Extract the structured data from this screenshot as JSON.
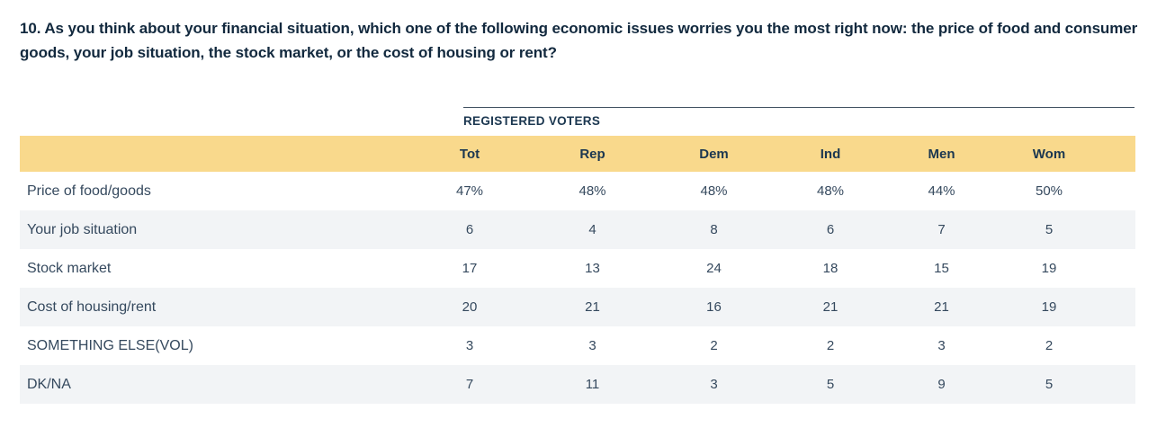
{
  "question": "10. As you think about your financial situation, which one of the following economic issues worries you the most right now: the price of food and consumer goods, your job situation, the stock market, or the cost of housing or rent?",
  "table": {
    "group_header": "REGISTERED VOTERS",
    "columns": [
      "Tot",
      "Rep",
      "Dem",
      "Ind",
      "Men",
      "Wom"
    ],
    "rows": [
      {
        "label": "Price of food/goods",
        "values": [
          "47%",
          "48%",
          "48%",
          "48%",
          "44%",
          "50%"
        ]
      },
      {
        "label": "Your job situation",
        "values": [
          "6",
          "4",
          "8",
          "6",
          "7",
          "5"
        ]
      },
      {
        "label": "Stock market",
        "values": [
          "17",
          "13",
          "24",
          "18",
          "15",
          "19"
        ]
      },
      {
        "label": "Cost of housing/rent",
        "values": [
          "20",
          "21",
          "16",
          "21",
          "21",
          "19"
        ]
      },
      {
        "label": "SOMETHING ELSE(VOL)",
        "values": [
          "3",
          "3",
          "2",
          "2",
          "3",
          "2"
        ]
      },
      {
        "label": "DK/NA",
        "values": [
          "7",
          "11",
          "3",
          "5",
          "9",
          "5"
        ]
      }
    ]
  },
  "chart_data": {
    "type": "table",
    "title": "10. As you think about your financial situation, which one of the following economic issues worries you the most right now: the price of food and consumer goods, your job situation, the stock market, or the cost of housing or rent?",
    "group_header": "REGISTERED VOTERS",
    "columns": [
      "Tot",
      "Rep",
      "Dem",
      "Ind",
      "Men",
      "Wom"
    ],
    "row_labels": [
      "Price of food/goods",
      "Your job situation",
      "Stock market",
      "Cost of housing/rent",
      "SOMETHING ELSE(VOL)",
      "DK/NA"
    ],
    "values": [
      [
        47,
        48,
        48,
        48,
        44,
        50
      ],
      [
        6,
        4,
        8,
        6,
        7,
        5
      ],
      [
        17,
        13,
        24,
        18,
        15,
        19
      ],
      [
        20,
        21,
        16,
        21,
        21,
        19
      ],
      [
        3,
        3,
        2,
        2,
        3,
        2
      ],
      [
        7,
        11,
        3,
        5,
        9,
        5
      ]
    ],
    "value_unit": "percent",
    "notes": "Percent sign shown only on first data row"
  },
  "colors": {
    "question_text": "#12293e",
    "header_text": "#1b3750",
    "body_text": "#35495e",
    "header_bg": "#f9d98c",
    "row_alt_bg": "#f2f4f6",
    "rule": "#425262"
  }
}
